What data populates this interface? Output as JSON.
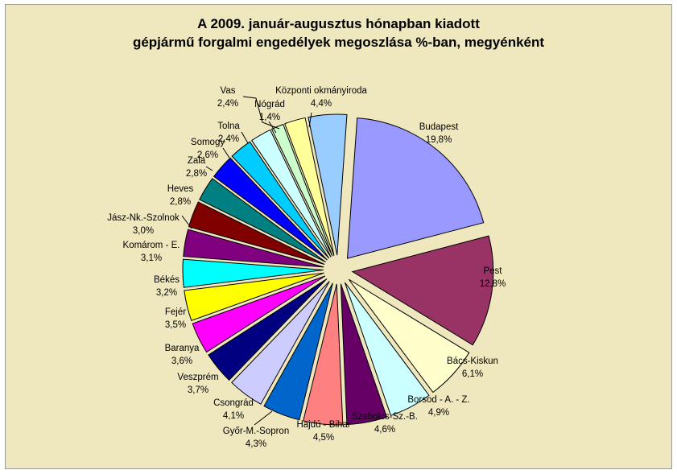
{
  "chart_data": {
    "type": "pie",
    "title_lines": [
      "A  2009. január-augusztus hónapban kiadott",
      "gépjármű forgalmi engedélyek megoszlása %-ban, megyénként"
    ],
    "slices": [
      {
        "label": "Budapest",
        "value": 19.8,
        "value_text": "19,8%",
        "color": "#9999ff"
      },
      {
        "label": "Pest",
        "value": 12.8,
        "value_text": "12,8%",
        "color": "#993366"
      },
      {
        "label": "Bács-Kiskun",
        "value": 6.1,
        "value_text": "6,1%",
        "color": "#ffffcc"
      },
      {
        "label": "Borsod - A. - Z.",
        "value": 4.9,
        "value_text": "4,9%",
        "color": "#ccffff"
      },
      {
        "label": "Szabolcs-Sz.-B.",
        "value": 4.6,
        "value_text": "4,6%",
        "color": "#660066"
      },
      {
        "label": "Hajdú - Bihar",
        "value": 4.5,
        "value_text": "4,5%",
        "color": "#ff8080"
      },
      {
        "label": "Győr-M.-Sopron",
        "value": 4.3,
        "value_text": "4,3%",
        "color": "#0066cc"
      },
      {
        "label": "Csongrád",
        "value": 4.1,
        "value_text": "4,1%",
        "color": "#ccccff"
      },
      {
        "label": "Veszprém",
        "value": 3.7,
        "value_text": "3,7%",
        "color": "#000080"
      },
      {
        "label": "Baranya",
        "value": 3.6,
        "value_text": "3,6%",
        "color": "#ff00ff"
      },
      {
        "label": "Fejér",
        "value": 3.5,
        "value_text": "3,5%",
        "color": "#ffff00"
      },
      {
        "label": "Békés",
        "value": 3.2,
        "value_text": "3,2%",
        "color": "#00ffff"
      },
      {
        "label": "Komárom - E.",
        "value": 3.1,
        "value_text": "3,1%",
        "color": "#800080"
      },
      {
        "label": "Jász-Nk.-Szolnok",
        "value": 3.0,
        "value_text": "3,0%",
        "color": "#800000"
      },
      {
        "label": "Heves",
        "value": 2.8,
        "value_text": "2,8%",
        "color": "#008080"
      },
      {
        "label": "Zala",
        "value": 2.8,
        "value_text": "2,8%",
        "color": "#0000ff"
      },
      {
        "label": "Somogy",
        "value": 2.6,
        "value_text": "2,6%",
        "color": "#00ccff"
      },
      {
        "label": "Tolna",
        "value": 2.4,
        "value_text": "2,4%",
        "color": "#ccffff"
      },
      {
        "label": "Nógrád",
        "value": 1.4,
        "value_text": "1,4%",
        "color": "#ccffcc"
      },
      {
        "label": "Vas",
        "value": 2.4,
        "value_text": "2,4%",
        "color": "#ffff99"
      },
      {
        "label": "Központi okmányiroda",
        "value": 4.4,
        "value_text": "4,4%",
        "color": "#99ccff"
      }
    ],
    "legend": "none",
    "background_color": "#efe7be"
  }
}
